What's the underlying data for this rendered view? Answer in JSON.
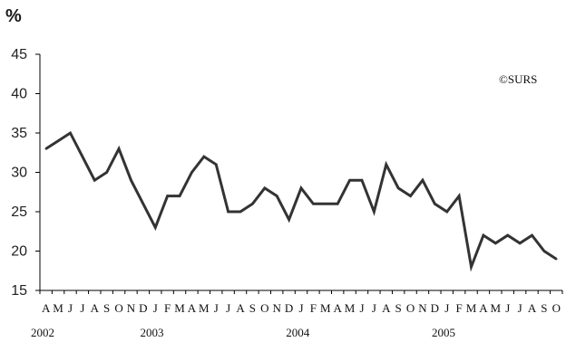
{
  "unit_label": "%",
  "credit": "©SURS",
  "chart_data": {
    "type": "line",
    "title": "",
    "xlabel": "",
    "ylabel": "%",
    "ylim": [
      15,
      45
    ],
    "y_ticks": [
      15,
      20,
      25,
      30,
      35,
      40,
      45
    ],
    "grid": false,
    "categories": [
      "A",
      "M",
      "J",
      "J",
      "A",
      "S",
      "O",
      "N",
      "D",
      "J",
      "F",
      "M",
      "A",
      "M",
      "J",
      "J",
      "A",
      "S",
      "O",
      "N",
      "D",
      "J",
      "F",
      "M",
      "A",
      "M",
      "J",
      "J",
      "A",
      "S",
      "O",
      "N",
      "D",
      "J",
      "F",
      "M",
      "A",
      "M",
      "J",
      "J",
      "A",
      "S",
      "O"
    ],
    "years": [
      {
        "label": "2002",
        "start_index": 0
      },
      {
        "label": "2003",
        "start_index": 9
      },
      {
        "label": "2004",
        "start_index": 21
      },
      {
        "label": "2005",
        "start_index": 33
      }
    ],
    "series": [
      {
        "color": "#333333",
        "values": [
          33,
          34,
          35,
          32,
          29,
          30,
          33,
          29,
          26,
          23,
          27,
          27,
          30,
          32,
          31,
          25,
          25,
          26,
          28,
          27,
          24,
          28,
          26,
          26,
          26,
          29,
          29,
          25,
          31,
          28,
          27,
          29,
          26,
          25,
          27,
          18,
          22,
          21,
          22,
          21,
          22,
          20,
          19
        ]
      }
    ]
  }
}
